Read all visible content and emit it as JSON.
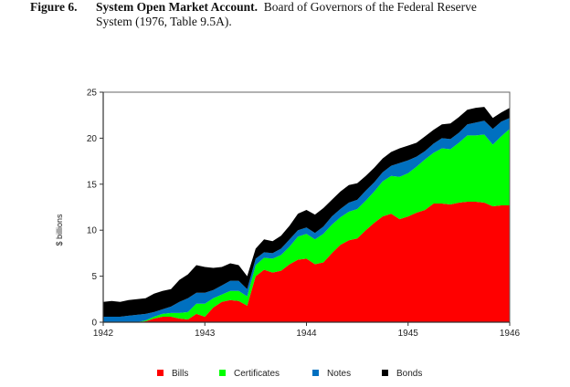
{
  "caption": {
    "figure_label": "Figure 6.",
    "title_bold": "System Open Market Account.",
    "title_rest": "Board of Governors of the Federal Reserve",
    "line2": "System (1976, Table 9.5A)."
  },
  "chart_data": {
    "type": "area",
    "stacked": true,
    "title": "",
    "xlabel": "",
    "ylabel": "$ billions",
    "xlim": [
      1942,
      1946
    ],
    "ylim": [
      0,
      25
    ],
    "x_ticks": [
      "1942",
      "1943",
      "1944",
      "1945",
      "1946"
    ],
    "y_ticks": [
      "0",
      "5",
      "10",
      "15",
      "20",
      "25"
    ],
    "grid": false,
    "legend_position": "bottom",
    "x": [
      "1942-01",
      "1942-02",
      "1942-03",
      "1942-04",
      "1942-05",
      "1942-06",
      "1942-07",
      "1942-08",
      "1942-09",
      "1942-10",
      "1942-11",
      "1942-12",
      "1943-01",
      "1943-02",
      "1943-03",
      "1943-04",
      "1943-05",
      "1943-06",
      "1943-07",
      "1943-08",
      "1943-09",
      "1943-10",
      "1943-11",
      "1943-12",
      "1944-01",
      "1944-02",
      "1944-03",
      "1944-04",
      "1944-05",
      "1944-06",
      "1944-07",
      "1944-08",
      "1944-09",
      "1944-10",
      "1944-11",
      "1944-12",
      "1945-01",
      "1945-02",
      "1945-03",
      "1945-04",
      "1945-05",
      "1945-06",
      "1945-07",
      "1945-08",
      "1945-09",
      "1945-10",
      "1945-11",
      "1945-12",
      "1946-01"
    ],
    "series": [
      {
        "name": "Bills",
        "color": "#ff0000",
        "values": [
          0,
          0,
          0,
          0,
          0,
          0.1,
          0.4,
          0.6,
          0.6,
          0.4,
          0.3,
          0.9,
          0.6,
          1.6,
          2.2,
          2.4,
          2.3,
          1.8,
          5.0,
          5.7,
          5.4,
          5.6,
          6.3,
          6.8,
          6.9,
          6.3,
          6.5,
          7.5,
          8.4,
          8.9,
          9.1,
          10.0,
          10.8,
          11.5,
          11.8,
          11.2,
          11.5,
          11.9,
          12.2,
          12.9,
          12.9,
          12.8,
          13.0,
          13.1,
          13.1,
          13.0,
          12.6,
          12.7,
          12.7
        ]
      },
      {
        "name": "Certificates",
        "color": "#00ff00",
        "values": [
          0,
          0,
          0,
          0,
          0,
          0.1,
          0.2,
          0.3,
          0.4,
          0.6,
          0.8,
          1.1,
          1.4,
          1.0,
          0.8,
          1.0,
          1.1,
          1.0,
          1.2,
          1.3,
          1.5,
          1.7,
          1.9,
          2.5,
          2.7,
          2.7,
          3.1,
          3.1,
          3.0,
          3.1,
          3.2,
          3.2,
          3.4,
          3.8,
          4.1,
          4.6,
          4.7,
          5.0,
          5.5,
          5.5,
          6.0,
          6.0,
          6.5,
          7.2,
          7.2,
          7.4,
          6.7,
          7.5,
          8.3
        ]
      },
      {
        "name": "Notes",
        "color": "#0070c0",
        "values": [
          0.6,
          0.6,
          0.6,
          0.7,
          0.8,
          0.7,
          0.5,
          0.5,
          0.7,
          1.2,
          1.5,
          1.2,
          1.2,
          0.9,
          1.0,
          1.1,
          1.1,
          0.8,
          0.7,
          0.6,
          0.6,
          0.7,
          0.8,
          0.7,
          0.7,
          0.7,
          0.8,
          0.9,
          0.9,
          1.0,
          1.0,
          1.1,
          1.0,
          1.0,
          1.1,
          1.5,
          1.4,
          1.1,
          0.9,
          1.0,
          1.1,
          1.1,
          1.1,
          1.2,
          1.4,
          1.5,
          1.7,
          1.6,
          1.2
        ]
      },
      {
        "name": "Bonds",
        "color": "#000000",
        "values": [
          1.6,
          1.7,
          1.6,
          1.7,
          1.7,
          1.7,
          2.0,
          2.0,
          1.9,
          2.4,
          2.6,
          3.0,
          2.8,
          2.4,
          2.0,
          1.9,
          1.7,
          1.4,
          1.1,
          1.4,
          1.3,
          1.4,
          1.5,
          1.8,
          1.9,
          2.0,
          2.0,
          1.8,
          1.9,
          1.9,
          1.8,
          1.6,
          1.6,
          1.5,
          1.5,
          1.6,
          1.6,
          1.5,
          1.6,
          1.5,
          1.5,
          1.7,
          1.7,
          1.6,
          1.6,
          1.5,
          1.2,
          1.0,
          1.1
        ]
      }
    ]
  }
}
